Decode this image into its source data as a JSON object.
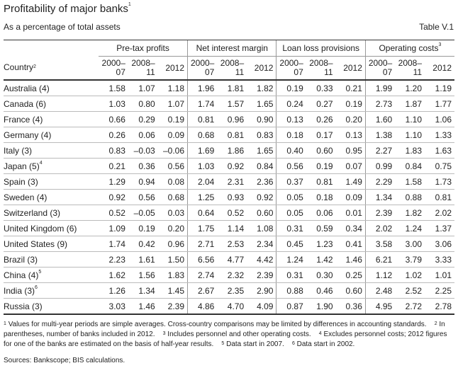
{
  "title": "Profitability of major banks",
  "title_note": "1",
  "subtitle": "As a percentage of total assets",
  "table_id": "Table V.1",
  "header": {
    "country": "Country",
    "country_note": "2",
    "groups": [
      {
        "label": "Pre-tax profits",
        "note": ""
      },
      {
        "label": "Net interest margin",
        "note": ""
      },
      {
        "label": "Loan loss provisions",
        "note": ""
      },
      {
        "label": "Operating costs",
        "note": "3"
      }
    ],
    "periods": [
      {
        "a": "2000–",
        "b": "07"
      },
      {
        "a": "2008–",
        "b": "11"
      },
      {
        "a": "",
        "b": "2012"
      }
    ]
  },
  "rows": [
    {
      "country": "Australia (4)",
      "note": "",
      "values": [
        "1.58",
        "1.07",
        "1.18",
        "1.96",
        "1.81",
        "1.82",
        "0.19",
        "0.33",
        "0.21",
        "1.99",
        "1.20",
        "1.19"
      ]
    },
    {
      "country": "Canada (6)",
      "note": "",
      "values": [
        "1.03",
        "0.80",
        "1.07",
        "1.74",
        "1.57",
        "1.65",
        "0.24",
        "0.27",
        "0.19",
        "2.73",
        "1.87",
        "1.77"
      ]
    },
    {
      "country": "France (4)",
      "note": "",
      "values": [
        "0.66",
        "0.29",
        "0.19",
        "0.81",
        "0.96",
        "0.90",
        "0.13",
        "0.26",
        "0.20",
        "1.60",
        "1.10",
        "1.06"
      ]
    },
    {
      "country": "Germany (4)",
      "note": "",
      "values": [
        "0.26",
        "0.06",
        "0.09",
        "0.68",
        "0.81",
        "0.83",
        "0.18",
        "0.17",
        "0.13",
        "1.38",
        "1.10",
        "1.33"
      ]
    },
    {
      "country": "Italy (3)",
      "note": "",
      "values": [
        "0.83",
        "–0.03",
        "–0.06",
        "1.69",
        "1.86",
        "1.65",
        "0.40",
        "0.60",
        "0.95",
        "2.27",
        "1.83",
        "1.63"
      ]
    },
    {
      "country": "Japan (5)",
      "note": "4",
      "values": [
        "0.21",
        "0.36",
        "0.56",
        "1.03",
        "0.92",
        "0.84",
        "0.56",
        "0.19",
        "0.07",
        "0.99",
        "0.84",
        "0.75"
      ]
    },
    {
      "country": "Spain (3)",
      "note": "",
      "values": [
        "1.29",
        "0.94",
        "0.08",
        "2.04",
        "2.31",
        "2.36",
        "0.37",
        "0.81",
        "1.49",
        "2.29",
        "1.58",
        "1.73"
      ]
    },
    {
      "country": "Sweden (4)",
      "note": "",
      "values": [
        "0.92",
        "0.56",
        "0.68",
        "1.25",
        "0.93",
        "0.92",
        "0.05",
        "0.18",
        "0.09",
        "1.34",
        "0.88",
        "0.81"
      ]
    },
    {
      "country": "Switzerland (3)",
      "note": "",
      "values": [
        "0.52",
        "–0.05",
        "0.03",
        "0.64",
        "0.52",
        "0.60",
        "0.05",
        "0.06",
        "0.01",
        "2.39",
        "1.82",
        "2.02"
      ]
    },
    {
      "country": "United Kingdom (6)",
      "note": "",
      "values": [
        "1.09",
        "0.19",
        "0.20",
        "1.75",
        "1.14",
        "1.08",
        "0.31",
        "0.59",
        "0.34",
        "2.02",
        "1.24",
        "1.37"
      ]
    },
    {
      "country": "United States (9)",
      "note": "",
      "values": [
        "1.74",
        "0.42",
        "0.96",
        "2.71",
        "2.53",
        "2.34",
        "0.45",
        "1.23",
        "0.41",
        "3.58",
        "3.00",
        "3.06"
      ]
    },
    {
      "country": "Brazil (3)",
      "note": "",
      "values": [
        "2.23",
        "1.61",
        "1.50",
        "6.56",
        "4.77",
        "4.42",
        "1.24",
        "1.42",
        "1.46",
        "6.21",
        "3.79",
        "3.33"
      ]
    },
    {
      "country": "China (4)",
      "note": "5",
      "values": [
        "1.62",
        "1.56",
        "1.83",
        "2.74",
        "2.32",
        "2.39",
        "0.31",
        "0.30",
        "0.25",
        "1.12",
        "1.02",
        "1.01"
      ]
    },
    {
      "country": "India (3)",
      "note": "6",
      "values": [
        "1.26",
        "1.34",
        "1.45",
        "2.67",
        "2.35",
        "2.90",
        "0.88",
        "0.46",
        "0.60",
        "2.48",
        "2.52",
        "2.25"
      ]
    },
    {
      "country": "Russia (3)",
      "note": "",
      "values": [
        "3.03",
        "1.46",
        "2.39",
        "4.86",
        "4.70",
        "4.09",
        "0.87",
        "1.90",
        "0.36",
        "4.95",
        "2.72",
        "2.78"
      ]
    }
  ],
  "footnotes": [
    {
      "n": "1",
      "text": "Values for multi-year periods are simple averages. Cross-country comparisons may be limited by differences in accounting standards."
    },
    {
      "n": "2",
      "text": "In parentheses, number of banks included in 2012."
    },
    {
      "n": "3",
      "text": "Includes personnel and other operating costs."
    },
    {
      "n": "4",
      "text": "Excludes personnel costs; 2012 figures for one of the banks are estimated on the basis of half-year results."
    },
    {
      "n": "5",
      "text": "Data start in 2007."
    },
    {
      "n": "6",
      "text": "Data start in 2002."
    }
  ],
  "sources": "Sources: Bankscope; BIS calculations."
}
